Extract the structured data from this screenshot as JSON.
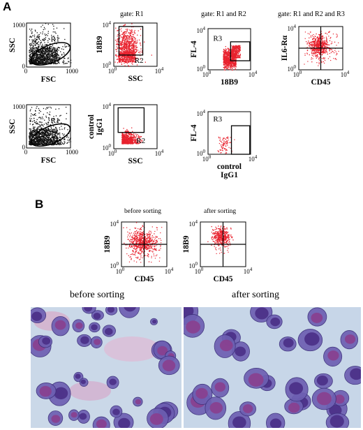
{
  "figure": {
    "panel_a": "A",
    "panel_b": "B",
    "gates": [
      "gate: R1",
      "gate: R1 and R2",
      "gate: R1 and R2 and R3"
    ],
    "sort_labels": [
      "before sorting",
      "after sorting"
    ],
    "photo_captions": [
      "before sorting",
      "after sorting"
    ],
    "colors": {
      "events_red": "#e8222e",
      "events_black": "#111111",
      "background": "#ffffff",
      "stain_purple": "#5a3a8c",
      "stain_pink": "#c77aa8",
      "photo_bg": "#c9d8e6"
    }
  },
  "chart_data": [
    {
      "type": "scatter",
      "id": "a1",
      "xlabel": "FSC",
      "ylabel": "SSC",
      "xlim": [
        0,
        1000
      ],
      "ylim": [
        0,
        1000
      ],
      "x_ticks": [
        "0",
        "1000"
      ],
      "y_ticks": [
        "0",
        "1000"
      ],
      "scale": "linear",
      "gate_labels": [
        "R1"
      ],
      "color": "black"
    },
    {
      "type": "scatter",
      "id": "a2",
      "xlabel": "SSC",
      "ylabel": "18B9",
      "xlim": [
        1,
        10000
      ],
      "ylim": [
        1,
        10000
      ],
      "x_ticks": [
        "10^0",
        "10^4"
      ],
      "y_ticks": [
        "10^0",
        "10^4"
      ],
      "scale": "log",
      "gate_labels": [
        "R2"
      ],
      "color": "red"
    },
    {
      "type": "scatter",
      "id": "a3",
      "xlabel": "18B9",
      "ylabel": "FL-4",
      "xlim": [
        1,
        10000
      ],
      "ylim": [
        1,
        10000
      ],
      "x_ticks": [
        "10^0",
        "10^4"
      ],
      "y_ticks": [
        "10^0",
        "10^4"
      ],
      "scale": "log",
      "gate_labels": [
        "R3"
      ],
      "color": "red"
    },
    {
      "type": "scatter",
      "id": "a4",
      "xlabel": "CD45",
      "ylabel": "IL6-Rα",
      "xlim": [
        1,
        10000
      ],
      "ylim": [
        1,
        10000
      ],
      "x_ticks": [
        "10^0",
        "10^4"
      ],
      "y_ticks": [
        "10^0",
        "10^4"
      ],
      "scale": "log",
      "gate_labels": [],
      "color": "red"
    },
    {
      "type": "scatter",
      "id": "a5",
      "xlabel": "FSC",
      "ylabel": "SSC",
      "xlim": [
        0,
        1000
      ],
      "ylim": [
        0,
        1000
      ],
      "x_ticks": [
        "0",
        "1000"
      ],
      "y_ticks": [
        "0",
        "1000"
      ],
      "scale": "linear",
      "gate_labels": [
        "R1"
      ],
      "color": "black"
    },
    {
      "type": "scatter",
      "id": "a6",
      "xlabel": "SSC",
      "ylabel": "control IgG1",
      "ylabel_lines": [
        "control",
        "IgG1"
      ],
      "xlim": [
        1,
        10000
      ],
      "ylim": [
        1,
        10000
      ],
      "x_ticks": [
        "10^0",
        "10^4"
      ],
      "y_ticks": [
        "10^0",
        "10^4"
      ],
      "scale": "log",
      "gate_labels": [
        "R2"
      ],
      "color": "red"
    },
    {
      "type": "scatter",
      "id": "a7",
      "xlabel": "control IgG1",
      "xlabel_lines": [
        "control",
        "IgG1"
      ],
      "ylabel": "FL-4",
      "xlim": [
        1,
        10000
      ],
      "ylim": [
        1,
        10000
      ],
      "x_ticks": [
        "10^0",
        "10^4"
      ],
      "y_ticks": [
        "10^0",
        "10^4"
      ],
      "scale": "log",
      "gate_labels": [
        "R3"
      ],
      "color": "red"
    },
    {
      "type": "scatter",
      "id": "b1",
      "xlabel": "CD45",
      "ylabel": "18B9",
      "xlim": [
        1,
        10000
      ],
      "ylim": [
        1,
        10000
      ],
      "x_ticks": [
        "10^0",
        "10^4"
      ],
      "y_ticks": [
        "10^0",
        "10^4"
      ],
      "scale": "log",
      "gate_labels": [],
      "color": "red"
    },
    {
      "type": "scatter",
      "id": "b2",
      "xlabel": "CD45",
      "ylabel": "18B9",
      "xlim": [
        1,
        10000
      ],
      "ylim": [
        1,
        10000
      ],
      "x_ticks": [
        "10^0",
        "10^4"
      ],
      "y_ticks": [
        "10^0",
        "10^4"
      ],
      "scale": "log",
      "gate_labels": [],
      "color": "red"
    }
  ]
}
